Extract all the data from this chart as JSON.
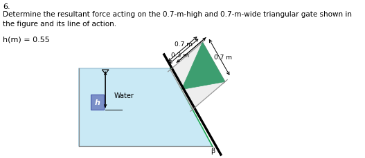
{
  "title_number": "6.",
  "title_line1": "Determine the resultant force acting on the 0.7-m-high and 0.7-m-wide triangular gate shown in",
  "title_line2": "the figure and its line of action.",
  "h_label": "h(m) = 0.55",
  "water_label": "Water",
  "h_arrow_label": "h",
  "dim_03": "0.3 m",
  "dim_07_top": "0.7 m",
  "dim_07_bot": "0.7 m",
  "beta_label": "β",
  "water_color": "#c9e9f5",
  "water_edge": "#aaccdd",
  "triangle_fill": "#3d9e70",
  "frame_fill": "#eeeeee",
  "frame_edge": "#999999",
  "wall_line_color": "#000000",
  "text_color": "#000000",
  "bg_color": "#ffffff",
  "h_box_color": "#7a8fc8"
}
